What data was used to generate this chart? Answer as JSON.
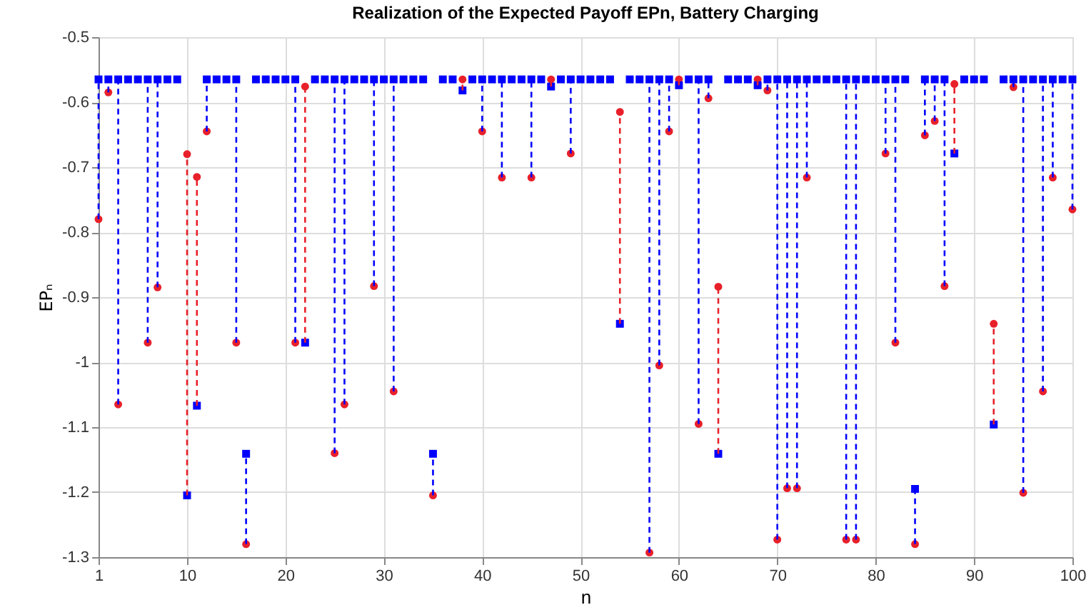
{
  "chart_data": {
    "type": "scatter",
    "title": "Realization of the Expected Payoff EPn, Battery Charging",
    "xlabel": "n",
    "ylabel": "EPₙ",
    "x": [
      1,
      2,
      3,
      4,
      5,
      6,
      7,
      8,
      9,
      10,
      11,
      12,
      13,
      14,
      15,
      16,
      17,
      18,
      19,
      20,
      21,
      22,
      23,
      24,
      25,
      26,
      27,
      28,
      29,
      30,
      31,
      32,
      33,
      34,
      35,
      36,
      37,
      38,
      39,
      40,
      41,
      42,
      43,
      44,
      45,
      46,
      47,
      48,
      49,
      50,
      51,
      52,
      53,
      54,
      55,
      56,
      57,
      58,
      59,
      60,
      61,
      62,
      63,
      64,
      65,
      66,
      67,
      68,
      69,
      70,
      71,
      72,
      73,
      74,
      75,
      76,
      77,
      78,
      79,
      80,
      81,
      82,
      83,
      84,
      85,
      86,
      87,
      88,
      89,
      90,
      91,
      92,
      93,
      94,
      95,
      96,
      97,
      98,
      99,
      100
    ],
    "series": [
      {
        "color": "#e8202a",
        "marker": "circle",
        "errors": [
          null,
          null,
          null,
          null,
          null,
          null,
          null,
          null,
          null,
          [
            -1.205,
            -0.68
          ],
          [
            -1.067,
            -0.715
          ],
          null,
          null,
          null,
          null,
          null,
          null,
          null,
          null,
          null,
          null,
          [
            -0.97,
            -0.576
          ],
          null,
          null,
          null,
          null,
          null,
          null,
          null,
          null,
          null,
          null,
          null,
          null,
          null,
          null,
          null,
          [
            -0.582,
            -0.565
          ],
          null,
          null,
          null,
          null,
          null,
          null,
          null,
          null,
          [
            -0.576,
            -0.565
          ],
          null,
          null,
          null,
          null,
          null,
          null,
          [
            -0.941,
            -0.615
          ],
          null,
          null,
          null,
          null,
          null,
          [
            -0.574,
            -0.565
          ],
          null,
          null,
          null,
          [
            -1.141,
            -0.884
          ],
          null,
          null,
          null,
          [
            -0.574,
            -0.565
          ],
          null,
          null,
          null,
          null,
          null,
          null,
          null,
          null,
          null,
          null,
          null,
          null,
          null,
          null,
          null,
          null,
          null,
          null,
          null,
          [
            -0.679,
            -0.572
          ],
          null,
          null,
          null,
          [
            -1.096,
            -0.941
          ],
          null,
          null,
          null,
          null,
          null,
          null,
          null,
          null
        ],
        "values": [
          -0.78,
          -0.585,
          -1.065,
          null,
          null,
          -0.97,
          -0.885,
          null,
          null,
          -0.68,
          -0.715,
          -0.645,
          null,
          null,
          -0.97,
          -1.28,
          null,
          null,
          null,
          null,
          -0.97,
          -0.576,
          null,
          null,
          -1.14,
          -1.065,
          null,
          null,
          -0.883,
          null,
          -1.045,
          null,
          null,
          null,
          -1.205,
          null,
          null,
          -0.565,
          null,
          -0.645,
          null,
          -0.716,
          null,
          null,
          -0.716,
          null,
          -0.565,
          null,
          -0.679,
          null,
          null,
          null,
          null,
          -0.615,
          null,
          null,
          -1.293,
          -1.005,
          -0.645,
          -0.565,
          null,
          -1.095,
          -0.594,
          -0.884,
          null,
          null,
          null,
          -0.565,
          -0.582,
          -1.273,
          -1.194,
          -1.194,
          -0.716,
          null,
          null,
          null,
          -1.273,
          -1.273,
          null,
          null,
          -0.679,
          -0.97,
          null,
          -1.28,
          -0.651,
          -0.629,
          -0.883,
          -0.572,
          null,
          null,
          null,
          -0.941,
          null,
          -0.577,
          -1.201,
          null,
          -1.045,
          -0.716,
          null,
          -0.765
        ]
      },
      {
        "color": "#0000ff",
        "marker": "square",
        "errors": [
          [
            -0.78,
            -0.565
          ],
          [
            -0.585,
            -0.565
          ],
          [
            -1.065,
            -0.565
          ],
          null,
          null,
          [
            -0.97,
            -0.565
          ],
          [
            -0.885,
            -0.565
          ],
          null,
          null,
          null,
          null,
          [
            -0.645,
            -0.565
          ],
          null,
          null,
          [
            -0.97,
            -0.565
          ],
          [
            -1.28,
            -1.141
          ],
          null,
          null,
          null,
          null,
          [
            -0.97,
            -0.565
          ],
          null,
          null,
          null,
          [
            -1.14,
            -0.565
          ],
          [
            -1.065,
            -0.565
          ],
          null,
          null,
          [
            -0.883,
            -0.565
          ],
          null,
          [
            -1.045,
            -0.565
          ],
          null,
          null,
          null,
          [
            -1.205,
            -1.141
          ],
          null,
          null,
          null,
          null,
          [
            -0.645,
            -0.565
          ],
          null,
          [
            -0.716,
            -0.565
          ],
          null,
          null,
          [
            -0.716,
            -0.565
          ],
          null,
          null,
          null,
          [
            -0.679,
            -0.565
          ],
          null,
          null,
          null,
          null,
          null,
          null,
          null,
          [
            -1.293,
            -0.565
          ],
          [
            -1.005,
            -0.565
          ],
          [
            -0.645,
            -0.565
          ],
          null,
          null,
          [
            -1.095,
            -0.565
          ],
          [
            -0.594,
            -0.565
          ],
          null,
          null,
          null,
          null,
          null,
          [
            -0.582,
            -0.565
          ],
          [
            -1.273,
            -0.565
          ],
          [
            -1.194,
            -0.565
          ],
          [
            -1.194,
            -0.565
          ],
          [
            -0.716,
            -0.565
          ],
          null,
          null,
          null,
          [
            -1.273,
            -0.565
          ],
          [
            -1.273,
            -0.565
          ],
          null,
          null,
          [
            -0.679,
            -0.565
          ],
          [
            -0.97,
            -0.565
          ],
          null,
          [
            -1.28,
            -1.195
          ],
          [
            -0.651,
            -0.565
          ],
          [
            -0.629,
            -0.565
          ],
          [
            -0.883,
            -0.565
          ],
          null,
          null,
          null,
          null,
          null,
          null,
          [
            -0.577,
            -0.565
          ],
          [
            -1.201,
            -0.565
          ],
          null,
          [
            -1.045,
            -0.565
          ],
          [
            -0.716,
            -0.565
          ],
          null,
          [
            -0.765,
            -0.565
          ]
        ],
        "values": [
          -0.565,
          -0.565,
          -0.565,
          -0.565,
          -0.565,
          -0.565,
          -0.565,
          -0.565,
          -0.565,
          -1.205,
          -1.067,
          -0.565,
          -0.565,
          -0.565,
          -0.565,
          -1.141,
          -0.565,
          -0.565,
          -0.565,
          -0.565,
          -0.565,
          -0.97,
          -0.565,
          -0.565,
          -0.565,
          -0.565,
          -0.565,
          -0.565,
          -0.565,
          -0.565,
          -0.565,
          -0.565,
          -0.565,
          -0.565,
          -1.141,
          -0.565,
          -0.565,
          -0.582,
          -0.565,
          -0.565,
          -0.565,
          -0.565,
          -0.565,
          -0.565,
          -0.565,
          -0.565,
          -0.576,
          -0.565,
          -0.565,
          -0.565,
          -0.565,
          -0.565,
          -0.565,
          -0.941,
          -0.565,
          -0.565,
          -0.565,
          -0.565,
          -0.565,
          -0.574,
          -0.565,
          -0.565,
          -0.565,
          -1.141,
          -0.565,
          -0.565,
          -0.565,
          -0.574,
          -0.565,
          -0.565,
          -0.565,
          -0.565,
          -0.565,
          -0.565,
          -0.565,
          -0.565,
          -0.565,
          -0.565,
          -0.565,
          -0.565,
          -0.565,
          -0.565,
          -0.565,
          -1.195,
          -0.565,
          -0.565,
          -0.565,
          -0.679,
          -0.565,
          -0.565,
          -0.565,
          -1.096,
          -0.565,
          -0.565,
          -0.565,
          -0.565,
          -0.565,
          -0.565,
          -0.565,
          -0.565
        ]
      }
    ],
    "line_style": "dashed",
    "xlim": [
      1,
      100
    ],
    "xticks": [
      1,
      10,
      20,
      30,
      40,
      50,
      60,
      70,
      80,
      90,
      100
    ],
    "ylim": [
      -1.3,
      -0.5
    ],
    "yticks": [
      -1.3,
      -1.2,
      -1.1,
      -1,
      -0.9,
      -0.8,
      -0.7,
      -0.6,
      -0.5
    ],
    "grid": true
  }
}
